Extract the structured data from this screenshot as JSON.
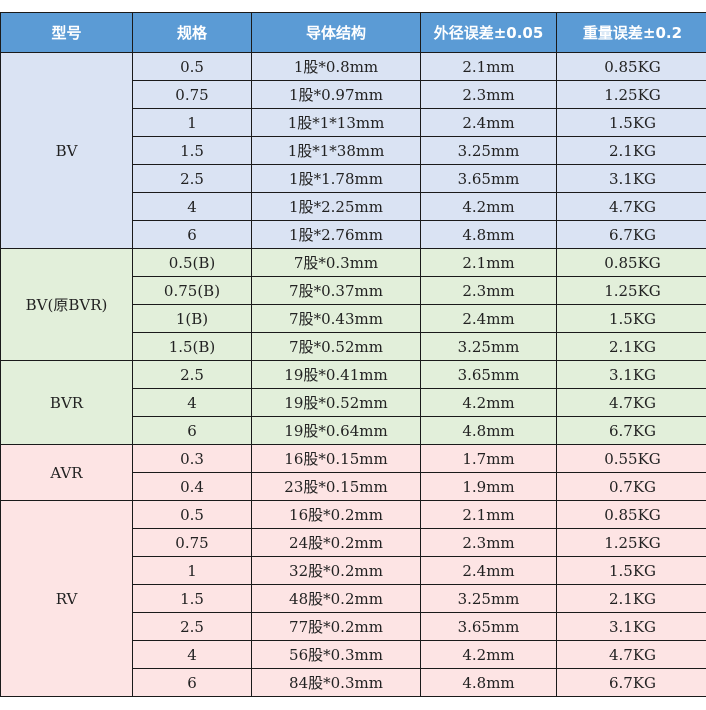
{
  "headers": [
    "型号",
    "规格",
    "导体结构",
    "外径误差±0.05",
    "重量误差±0.2"
  ],
  "colors": {
    "header": "#5b9bd5",
    "blue": "#dae3f3",
    "green": "#e2efda",
    "pink": "#fde4e4"
  },
  "groups": [
    {
      "model": "BV",
      "color": "blue",
      "rows": [
        [
          "0.5",
          "1股*0.8mm",
          "2.1mm",
          "0.85KG"
        ],
        [
          "0.75",
          "1股*0.97mm",
          "2.3mm",
          "1.25KG"
        ],
        [
          "1",
          "1股*1*13mm",
          "2.4mm",
          "1.5KG"
        ],
        [
          "1.5",
          "1股*1*38mm",
          "3.25mm",
          "2.1KG"
        ],
        [
          "2.5",
          "1股*1.78mm",
          "3.65mm",
          "3.1KG"
        ],
        [
          "4",
          "1股*2.25mm",
          "4.2mm",
          "4.7KG"
        ],
        [
          "6",
          "1股*2.76mm",
          "4.8mm",
          "6.7KG"
        ]
      ]
    },
    {
      "model": "BV(原BVR)",
      "color": "green",
      "rows": [
        [
          "0.5(B)",
          "7股*0.3mm",
          "2.1mm",
          "0.85KG"
        ],
        [
          "0.75(B)",
          "7股*0.37mm",
          "2.3mm",
          "1.25KG"
        ],
        [
          "1(B)",
          "7股*0.43mm",
          "2.4mm",
          "1.5KG"
        ],
        [
          "1.5(B)",
          "7股*0.52mm",
          "3.25mm",
          "2.1KG"
        ]
      ]
    },
    {
      "model": "BVR",
      "color": "green",
      "rows": [
        [
          "2.5",
          "19股*0.41mm",
          "3.65mm",
          "3.1KG"
        ],
        [
          "4",
          "19股*0.52mm",
          "4.2mm",
          "4.7KG"
        ],
        [
          "6",
          "19股*0.64mm",
          "4.8mm",
          "6.7KG"
        ]
      ]
    },
    {
      "model": "AVR",
      "color": "pink",
      "rows": [
        [
          "0.3",
          "16股*0.15mm",
          "1.7mm",
          "0.55KG"
        ],
        [
          "0.4",
          "23股*0.15mm",
          "1.9mm",
          "0.7KG"
        ]
      ]
    },
    {
      "model": "RV",
      "color": "pink",
      "rows": [
        [
          "0.5",
          "16股*0.2mm",
          "2.1mm",
          "0.85KG"
        ],
        [
          "0.75",
          "24股*0.2mm",
          "2.3mm",
          "1.25KG"
        ],
        [
          "1",
          "32股*0.2mm",
          "2.4mm",
          "1.5KG"
        ],
        [
          "1.5",
          "48股*0.2mm",
          "3.25mm",
          "2.1KG"
        ],
        [
          "2.5",
          "77股*0.2mm",
          "3.65mm",
          "3.1KG"
        ],
        [
          "4",
          "56股*0.3mm",
          "4.2mm",
          "4.7KG"
        ],
        [
          "6",
          "84股*0.3mm",
          "4.8mm",
          "6.7KG"
        ]
      ]
    }
  ]
}
